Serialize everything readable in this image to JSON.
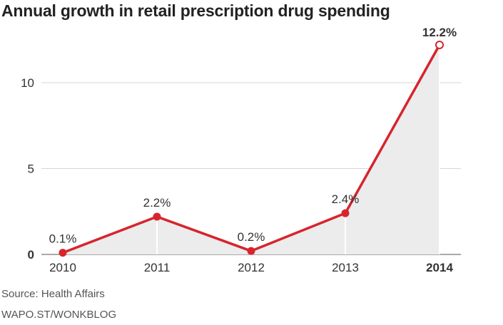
{
  "chart_data": {
    "type": "area",
    "title": "Annual growth in retail prescription drug spending",
    "xlabel": "",
    "ylabel": "",
    "x": [
      "2010",
      "2011",
      "2012",
      "2013",
      "2014"
    ],
    "series": [
      {
        "values": [
          0.1,
          2.2,
          0.2,
          2.4,
          12.2
        ]
      }
    ],
    "data_labels": [
      "0.1%",
      "2.2%",
      "0.2%",
      "2.4%",
      "12.2%"
    ],
    "highlight_category": "2014",
    "y_ticks": [
      0,
      5,
      10
    ],
    "ylim": [
      0,
      12.2
    ],
    "grid": true,
    "colors": {
      "line": "#d7242d",
      "area": "#ececec",
      "grid": "#d6d6d6"
    }
  },
  "footer": {
    "source": "Source: Health Affairs",
    "credit": "WAPO.ST/WONKBLOG"
  }
}
